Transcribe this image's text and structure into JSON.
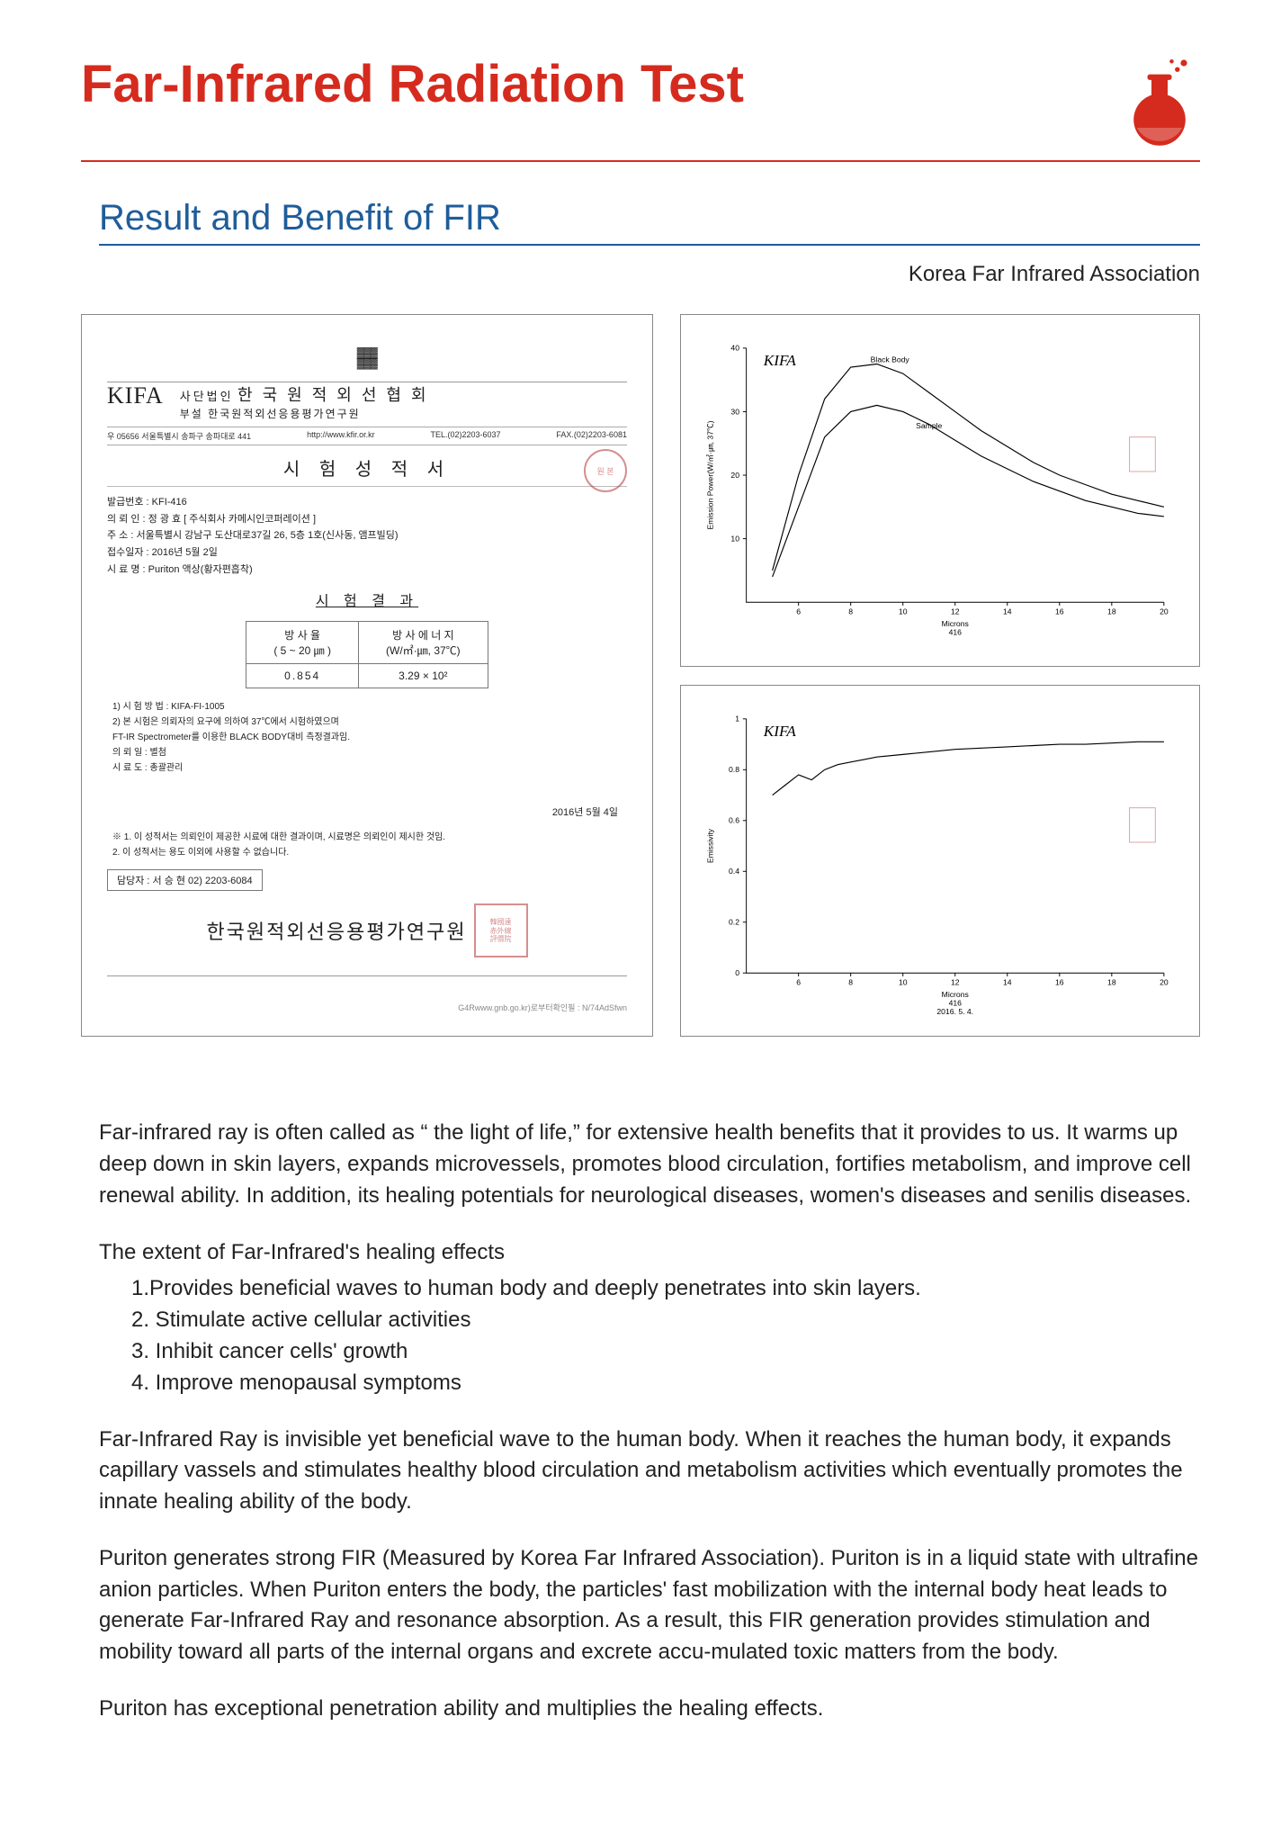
{
  "colors": {
    "accent_red": "#d52b1e",
    "accent_blue": "#1f5d9a",
    "text": "#222222",
    "border_gray": "#888888",
    "stamp_red": "#b44444"
  },
  "header": {
    "title": "Far-Infrared Radiation Test"
  },
  "subheader": {
    "title": "Result and Benefit of FIR",
    "association": "Korea Far Infrared Association"
  },
  "certificate": {
    "kifa": "KIFA",
    "org_line1": "사단법인",
    "org_name": "한 국 원 적 외 선 협 회",
    "org_sub": "부설 한국원적외선응용평가연구원",
    "addr_left": "우 05656   서울특별시 송파구 송파대로 441",
    "addr_url": "http://www.kfir.or.kr",
    "addr_tel": "TEL.(02)2203-6037",
    "addr_fax": "FAX.(02)2203-6081",
    "title": "시 험 성 적 서",
    "seal": "원 본",
    "meta": {
      "l1": "발급번호 :  KFI-416",
      "l2": "의 뢰 인 :  정 광 효 [ 주식회사 카메시인코퍼레이션 ]",
      "l3": "주      소 :  서울특별시 강남구 도산대로37길 26, 5층 1호(신사동, 앰프빌딩)",
      "l4": "접수일자 :  2016년 5월 2일",
      "l5": "시 료 명 :  Puriton 액상(황자편흡착)"
    },
    "result_title": "시 험 결 과",
    "table": {
      "h1a": "방 사 율",
      "h1b": "( 5 ~ 20 ㎛ )",
      "h2a": "방 사 에 너 지",
      "h2b": "(W/㎡·㎛, 37℃)",
      "v1": "0.854",
      "v2": "3.29 × 10²"
    },
    "notes": {
      "n1": "1) 시 험 방 법 : KIFA-FI-1005",
      "n2": "2) 본 시험은 의뢰자의 요구에 의하여 37℃에서 시험하였으며",
      "n3": "    FT-IR Spectrometer를 이용한 BLACK BODY대비 측정결과임.",
      "n4": "의 뢰 일 : 별첨",
      "n5": "시 료 도 : 총괄관리"
    },
    "date": "2016년 5월 4일",
    "footer_notes": {
      "f1": "※ 1. 이 성적서는 의뢰인이 제공한 시료에 대한 결과이며, 시료명은 의뢰인이 제시한 것임.",
      "f2": "   2. 이 성적서는 용도 이외에 사용할 수 없습니다."
    },
    "contact": "담당자 :    서 승 현   02) 2203-6084",
    "issuer": "한국원적외선응용평가연구원",
    "micro": "G4Rwww.gnb.go.kr)로부터확인필 : N/74AdSfwn"
  },
  "chart_top": {
    "type": "line",
    "kifa": "KIFA",
    "legend1": "Black Body",
    "legend2": "Sample",
    "xaxis": "Microns",
    "xaxis_id": "416",
    "ylabel": "Emission Power(W/㎡·㎛, 37℃)",
    "xlim": [
      4,
      20
    ],
    "ylim": [
      0,
      40
    ],
    "xticks": [
      6,
      8,
      10,
      12,
      14,
      16,
      18,
      20
    ],
    "yticks": [
      10,
      20,
      30,
      40
    ],
    "series": {
      "black_body": [
        [
          5,
          5
        ],
        [
          6,
          20
        ],
        [
          7,
          32
        ],
        [
          8,
          37
        ],
        [
          9,
          37.5
        ],
        [
          10,
          36
        ],
        [
          11,
          33
        ],
        [
          12,
          30
        ],
        [
          13,
          27
        ],
        [
          14,
          24.5
        ],
        [
          15,
          22
        ],
        [
          16,
          20
        ],
        [
          17,
          18.5
        ],
        [
          18,
          17
        ],
        [
          19,
          16
        ],
        [
          20,
          15
        ]
      ],
      "sample": [
        [
          5,
          4
        ],
        [
          6,
          15
        ],
        [
          7,
          26
        ],
        [
          8,
          30
        ],
        [
          9,
          31
        ],
        [
          10,
          30
        ],
        [
          11,
          28
        ],
        [
          12,
          25.5
        ],
        [
          13,
          23
        ],
        [
          14,
          21
        ],
        [
          15,
          19
        ],
        [
          16,
          17.5
        ],
        [
          17,
          16
        ],
        [
          18,
          15
        ],
        [
          19,
          14
        ],
        [
          20,
          13.5
        ]
      ]
    },
    "line_colors": {
      "black_body": "#000000",
      "sample": "#000000"
    },
    "line_width": 1.2,
    "background_color": "#ffffff"
  },
  "chart_bottom": {
    "type": "line",
    "kifa": "KIFA",
    "xaxis": "Microns",
    "xaxis_id": "416",
    "xaxis_date": "2016. 5. 4.",
    "ylabel": "Emissivity",
    "xlim": [
      4,
      20
    ],
    "ylim": [
      0.0,
      1.0
    ],
    "xticks": [
      6,
      8,
      10,
      12,
      14,
      16,
      18,
      20
    ],
    "yticks": [
      0.0,
      0.2,
      0.4,
      0.6,
      0.8,
      1.0
    ],
    "series": {
      "emissivity": [
        [
          5,
          0.7
        ],
        [
          5.5,
          0.74
        ],
        [
          6,
          0.78
        ],
        [
          6.5,
          0.76
        ],
        [
          7,
          0.8
        ],
        [
          7.5,
          0.82
        ],
        [
          8,
          0.83
        ],
        [
          8.5,
          0.84
        ],
        [
          9,
          0.85
        ],
        [
          10,
          0.86
        ],
        [
          11,
          0.87
        ],
        [
          12,
          0.88
        ],
        [
          13,
          0.885
        ],
        [
          14,
          0.89
        ],
        [
          15,
          0.895
        ],
        [
          16,
          0.9
        ],
        [
          17,
          0.9
        ],
        [
          18,
          0.905
        ],
        [
          19,
          0.91
        ],
        [
          20,
          0.91
        ]
      ]
    },
    "line_color": "#000000",
    "line_width": 1.2,
    "background_color": "#ffffff"
  },
  "body": {
    "p1": "Far-infrared ray is often called as “ the light of life,” for extensive health benefits that it provides to us. It warms up deep down in skin layers, expands microvessels, promotes blood circulation, fortifies metabolism, and improve cell renewal ability. In addition, its healing potentials for neurological diseases, women's diseases and senilis diseases.",
    "effects_title": "The extent of Far-Infrared's healing effects",
    "effects": [
      "1.Provides beneficial waves to human body and deeply penetrates into skin layers.",
      "2.  Stimulate active cellular activities",
      "3. Inhibit cancer cells' growth",
      "4. Improve menopausal symptoms"
    ],
    "p2": "Far-Infrared Ray is invisible yet beneficial wave to the human body. When it reaches the human body, it expands capillary vassels and stimulates healthy blood circulation and metabolism activities which eventually promotes the innate healing ability of the body.",
    "p3": "Puriton generates strong FIR (Measured by Korea Far Infrared Association). Puriton is in a liquid state with ultrafine anion particles. When Puriton enters the body, the particles' fast mobilization with the internal body heat leads to generate Far-Infrared Ray and resonance absorption. As a result, this FIR generation provides stimulation and mobility toward all parts of the internal organs and excrete accu-mulated toxic matters from the body.",
    "p4": "Puriton has exceptional penetration ability and multiplies the healing effects."
  }
}
